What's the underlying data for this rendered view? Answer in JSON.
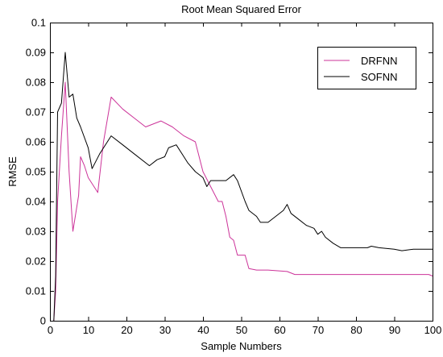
{
  "chart_data": {
    "type": "line",
    "title": "Root Mean Squared Error",
    "xlabel": "Sample Numbers",
    "ylabel": "RMSE",
    "xlim": [
      0,
      100
    ],
    "ylim": [
      0,
      0.1
    ],
    "xticks": [
      "0",
      "10",
      "20",
      "30",
      "40",
      "50",
      "60",
      "70",
      "80",
      "90",
      "100"
    ],
    "yticks": [
      "0",
      "0.01",
      "0.02",
      "0.03",
      "0.04",
      "0.05",
      "0.06",
      "0.07",
      "0.08",
      "0.09",
      "0.1"
    ],
    "grid": false,
    "legend_position": "top-right",
    "series": [
      {
        "name": "DRFNN",
        "color": "#cc3399",
        "points": [
          [
            1,
            0
          ],
          [
            1.5,
            0.01
          ],
          [
            2,
            0.04
          ],
          [
            3,
            0.062
          ],
          [
            4,
            0.08
          ],
          [
            5,
            0.05
          ],
          [
            6,
            0.03
          ],
          [
            7.5,
            0.042
          ],
          [
            8,
            0.055
          ],
          [
            9,
            0.052
          ],
          [
            10,
            0.048
          ],
          [
            12.5,
            0.043
          ],
          [
            14,
            0.06
          ],
          [
            16,
            0.075
          ],
          [
            19,
            0.071
          ],
          [
            22,
            0.068
          ],
          [
            25,
            0.065
          ],
          [
            29,
            0.067
          ],
          [
            32,
            0.065
          ],
          [
            35,
            0.062
          ],
          [
            38,
            0.06
          ],
          [
            40,
            0.05
          ],
          [
            42,
            0.045
          ],
          [
            44,
            0.04
          ],
          [
            45,
            0.04
          ],
          [
            46,
            0.035
          ],
          [
            47,
            0.028
          ],
          [
            48,
            0.027
          ],
          [
            49,
            0.022
          ],
          [
            50,
            0.022
          ],
          [
            51,
            0.022
          ],
          [
            52,
            0.0175
          ],
          [
            54,
            0.017
          ],
          [
            57,
            0.017
          ],
          [
            62,
            0.0165
          ],
          [
            64,
            0.0155
          ],
          [
            70,
            0.0155
          ],
          [
            80,
            0.0155
          ],
          [
            90,
            0.0155
          ],
          [
            99,
            0.0155
          ],
          [
            100,
            0.015
          ]
        ]
      },
      {
        "name": "SOFNN",
        "color": "#000000",
        "points": [
          [
            1,
            0
          ],
          [
            1.5,
            0.015
          ],
          [
            2,
            0.07
          ],
          [
            3,
            0.073
          ],
          [
            4,
            0.09
          ],
          [
            5,
            0.075
          ],
          [
            6,
            0.076
          ],
          [
            7,
            0.068
          ],
          [
            8,
            0.065
          ],
          [
            10,
            0.058
          ],
          [
            11,
            0.051
          ],
          [
            13,
            0.056
          ],
          [
            15,
            0.06
          ],
          [
            16,
            0.062
          ],
          [
            19,
            0.059
          ],
          [
            22,
            0.056
          ],
          [
            26,
            0.052
          ],
          [
            28,
            0.054
          ],
          [
            30,
            0.055
          ],
          [
            31,
            0.058
          ],
          [
            33,
            0.059
          ],
          [
            35,
            0.055
          ],
          [
            36,
            0.053
          ],
          [
            38,
            0.05
          ],
          [
            40,
            0.048
          ],
          [
            41,
            0.045
          ],
          [
            42,
            0.047
          ],
          [
            44,
            0.047
          ],
          [
            46,
            0.047
          ],
          [
            48,
            0.049
          ],
          [
            49,
            0.047
          ],
          [
            51,
            0.04
          ],
          [
            52,
            0.037
          ],
          [
            54,
            0.035
          ],
          [
            55,
            0.033
          ],
          [
            57,
            0.033
          ],
          [
            59,
            0.035
          ],
          [
            61,
            0.037
          ],
          [
            62,
            0.039
          ],
          [
            63,
            0.036
          ],
          [
            65,
            0.034
          ],
          [
            67,
            0.032
          ],
          [
            69,
            0.031
          ],
          [
            70,
            0.029
          ],
          [
            71,
            0.03
          ],
          [
            72,
            0.028
          ],
          [
            74,
            0.026
          ],
          [
            76,
            0.0245
          ],
          [
            80,
            0.0245
          ],
          [
            83,
            0.0245
          ],
          [
            84,
            0.025
          ],
          [
            86,
            0.0245
          ],
          [
            90,
            0.024
          ],
          [
            92,
            0.0235
          ],
          [
            95,
            0.024
          ],
          [
            100,
            0.024
          ]
        ]
      }
    ]
  }
}
